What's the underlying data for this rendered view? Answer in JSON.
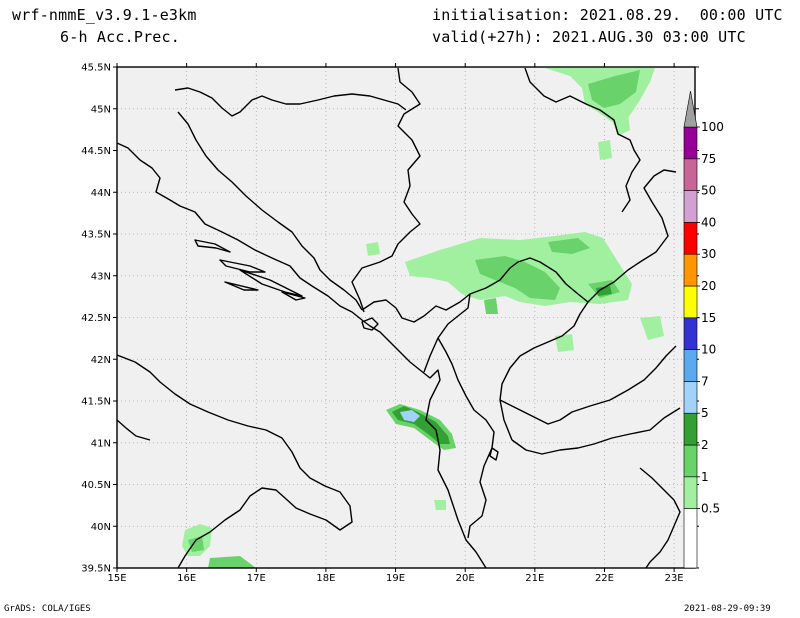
{
  "header": {
    "model": "wrf-nmmE_v3.9.1-e3km",
    "field": "6-h Acc.Prec.",
    "init_label": "initialisation:",
    "init_value": "2021.08.29.  00:00 UTC",
    "valid_label": "valid(+27h):",
    "valid_value": "2021.AUG.30 03:00 UTC"
  },
  "footer": {
    "credit": "GrADS: COLA/IGES",
    "timestamp": "2021-08-29-09:39"
  },
  "map": {
    "background_color": "#f0f0f0",
    "lon_labels": [
      "15E",
      "16E",
      "17E",
      "18E",
      "19E",
      "20E",
      "21E",
      "22E",
      "23E"
    ],
    "lat_labels": [
      "45.5N",
      "45N",
      "44.5N",
      "44N",
      "43.5N",
      "43N",
      "42.5N",
      "42N",
      "41.5N",
      "41N",
      "40.5N",
      "40N",
      "39.5N"
    ],
    "lon_range": [
      15,
      23.3
    ],
    "lat_range": [
      39.5,
      45.5
    ]
  },
  "colorbar": {
    "levels": [
      "0.5",
      "1",
      "2",
      "5",
      "7",
      "10",
      "15",
      "20",
      "30",
      "40",
      "50",
      "75",
      "100"
    ],
    "colors": [
      "#a0f0a0",
      "#6ad26a",
      "#32a032",
      "#a0d2fa",
      "#5aaaf0",
      "#3232d2",
      "#ffff00",
      "#ff9600",
      "#ff0000",
      "#d2a0d2",
      "#c86496",
      "#960096",
      "#a0a0a0"
    ]
  },
  "chart_data": {
    "type": "heatmap",
    "title": "6-h Acc.Prec.",
    "xlabel": "",
    "ylabel": "",
    "xlim": [
      15,
      23.3
    ],
    "ylim": [
      39.5,
      45.5
    ],
    "precip_areas": [
      {
        "lon": 22.4,
        "lat": 45.3,
        "level": "1"
      },
      {
        "lon": 21.6,
        "lat": 43.15,
        "level": "1"
      },
      {
        "lon": 22.0,
        "lat": 42.9,
        "level": "2"
      },
      {
        "lon": 21.0,
        "lat": 43.0,
        "level": "1"
      },
      {
        "lon": 19.2,
        "lat": 41.3,
        "level": "2"
      },
      {
        "lon": 19.2,
        "lat": 41.3,
        "level": "5"
      },
      {
        "lon": 16.2,
        "lat": 39.7,
        "level": "1"
      }
    ]
  }
}
